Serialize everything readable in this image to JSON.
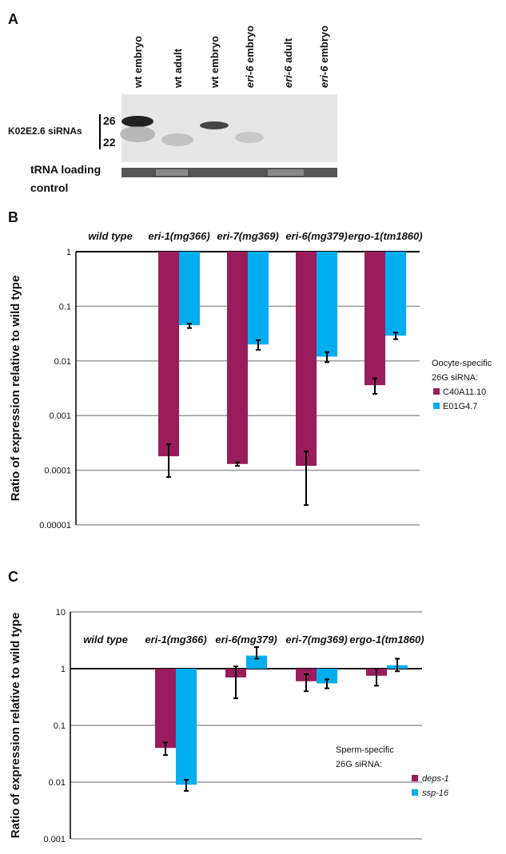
{
  "panels": [
    "A",
    "B",
    "C"
  ],
  "gel": {
    "lanes": [
      {
        "strain": "wt",
        "stage": "embryo"
      },
      {
        "strain": "wt",
        "stage": "adult"
      },
      {
        "strain": "wt",
        "stage": "embryo"
      },
      {
        "strain": "eri-6",
        "stage": "embryo"
      },
      {
        "strain": "eri-6",
        "stage": "adult"
      },
      {
        "strain": "eri-6",
        "stage": "embryo"
      }
    ],
    "probe_label": "K02E2.6 siRNAs",
    "size_markers": [
      "26",
      "22"
    ],
    "loading_label": [
      "tRNA loading",
      "control"
    ]
  },
  "chart_data": [
    {
      "type": "bar",
      "log_scale": true,
      "ylabel": "Ratio of expression relative to wild type",
      "categories": [
        "wild type",
        "eri-1(mg366)",
        "eri-7(mg369)",
        "eri-6(mg379)",
        "ergo-1(tm1860)"
      ],
      "ylim": [
        1e-05,
        1
      ],
      "yticks": [
        1,
        0.1,
        0.01,
        0.001,
        0.0001,
        1e-05
      ],
      "grid": true,
      "legend_title": [
        "Oocyte-specific",
        "26G siRNA:"
      ],
      "series": [
        {
          "name": "C40A11.10",
          "color": "#9b1c5c",
          "values": [
            1,
            0.00018,
            0.00013,
            0.00012,
            0.0036
          ],
          "err_lo": [
            null,
            7.5e-05,
            0.00012,
            2.3e-05,
            0.0025
          ],
          "err_hi": [
            null,
            0.0003,
            0.00014,
            0.00022,
            0.0048
          ]
        },
        {
          "name": "E01G4.7",
          "color": "#00aeef",
          "values": [
            1,
            0.045,
            0.02,
            0.012,
            0.029
          ],
          "err_lo": [
            null,
            0.04,
            0.016,
            0.0095,
            0.025
          ],
          "err_hi": [
            null,
            0.048,
            0.024,
            0.0145,
            0.033
          ]
        }
      ]
    },
    {
      "type": "bar",
      "log_scale": true,
      "ylabel": "Ratio of expression relative to wild type",
      "categories": [
        "wild type",
        "eri-1(mg366)",
        "eri-6(mg379)",
        "eri-7(mg369)",
        "ergo-1(tm1860)"
      ],
      "ylim": [
        0.001,
        10
      ],
      "yticks": [
        10,
        1,
        0.1,
        0.01,
        0.001
      ],
      "grid": true,
      "legend_title": [
        "Sperm-specific",
        "26G siRNA:"
      ],
      "series": [
        {
          "name": "deps-1",
          "color": "#9b1c5c",
          "values": [
            1,
            0.04,
            0.7,
            0.6,
            0.75
          ],
          "err_lo": [
            null,
            0.03,
            0.3,
            0.4,
            0.5
          ],
          "err_hi": [
            null,
            0.05,
            1.1,
            0.8,
            1.0
          ]
        },
        {
          "name": "ssp-16",
          "color": "#00aeef",
          "values": [
            1,
            0.009,
            1.7,
            0.55,
            1.15
          ],
          "err_lo": [
            null,
            0.007,
            1.5,
            0.45,
            0.9
          ],
          "err_hi": [
            null,
            0.011,
            2.4,
            0.65,
            1.5
          ]
        }
      ]
    }
  ]
}
